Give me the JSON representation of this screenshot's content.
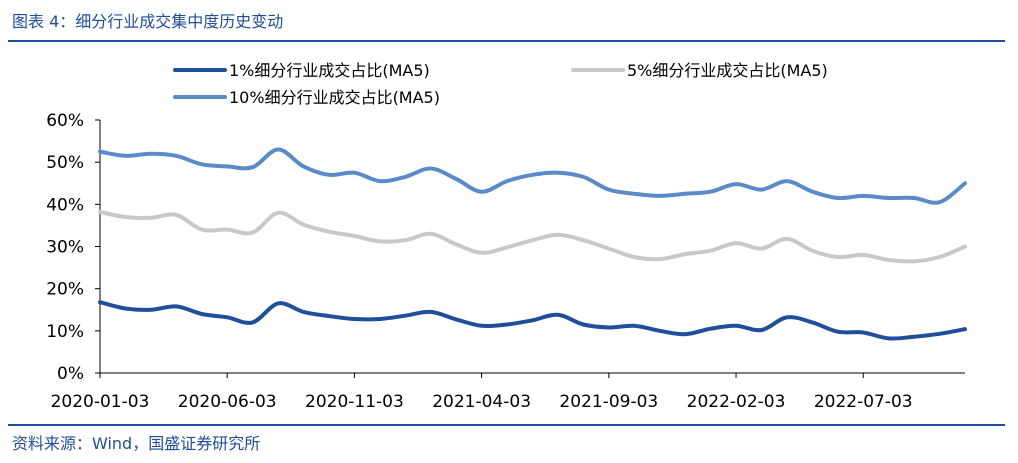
{
  "header": {
    "title": "图表 4：细分行业成交集中度历史变动"
  },
  "footer": {
    "source": "资料来源：Wind，国盛证券研究所"
  },
  "chart_data": {
    "type": "line",
    "title": "细分行业成交集中度历史变动",
    "xlabel": "",
    "ylabel": "",
    "ylim": [
      0,
      60
    ],
    "yticks": [
      "0%",
      "10%",
      "20%",
      "30%",
      "40%",
      "50%",
      "60%"
    ],
    "xticks": [
      "2020-01-03",
      "2020-06-03",
      "2020-11-03",
      "2021-04-03",
      "2021-09-03",
      "2022-02-03",
      "2022-07-03"
    ],
    "legend_position": "top",
    "x_count": 35,
    "x_tick_indices": [
      0,
      5,
      10,
      15,
      20,
      25,
      30
    ],
    "series": [
      {
        "name": "1%细分行业成交占比(MA5)",
        "color": "#1f4e9a",
        "values": [
          16.8,
          15.3,
          15.0,
          15.8,
          14.0,
          13.2,
          12.0,
          16.5,
          14.5,
          13.5,
          12.8,
          12.8,
          13.6,
          14.5,
          12.7,
          11.2,
          11.5,
          12.5,
          13.8,
          11.5,
          10.8,
          11.2,
          10.0,
          9.2,
          10.5,
          11.2,
          10.2,
          13.2,
          12.0,
          9.8,
          9.6,
          8.2,
          8.6,
          9.3,
          10.4
        ]
      },
      {
        "name": "5%细分行业成交占比(MA5)",
        "color": "#c8c8c8",
        "values": [
          38.2,
          37.0,
          36.8,
          37.5,
          34.0,
          34.0,
          33.3,
          38.0,
          35.2,
          33.5,
          32.5,
          31.2,
          31.5,
          33.0,
          30.5,
          28.5,
          29.8,
          31.5,
          32.8,
          31.5,
          29.5,
          27.5,
          27.0,
          28.2,
          29.0,
          30.8,
          29.5,
          31.8,
          29.0,
          27.5,
          28.0,
          26.8,
          26.5,
          27.5,
          30.0
        ]
      },
      {
        "name": "10%细分行业成交占比(MA5)",
        "color": "#5b8ac9",
        "values": [
          52.5,
          51.5,
          52.0,
          51.5,
          49.5,
          49.0,
          48.8,
          53.0,
          49.0,
          47.0,
          47.5,
          45.5,
          46.5,
          48.5,
          46.0,
          43.0,
          45.5,
          47.0,
          47.5,
          46.5,
          43.5,
          42.5,
          42.0,
          42.5,
          43.0,
          44.8,
          43.5,
          45.5,
          43.0,
          41.5,
          42.0,
          41.5,
          41.5,
          40.5,
          45.0
        ]
      }
    ]
  }
}
